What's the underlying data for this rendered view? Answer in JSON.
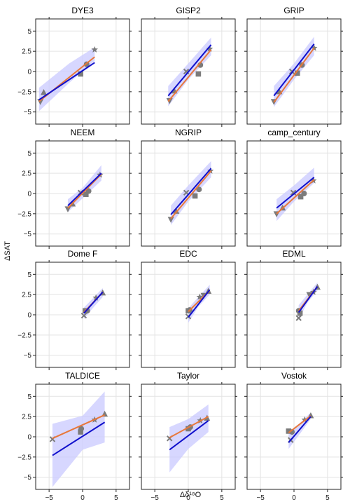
{
  "figure": {
    "ylabel": "ΔSAT",
    "xlabel": "Δδ¹⁸O",
    "x_ticks": [
      -5,
      0,
      5
    ],
    "y_ticks": [
      -5,
      -2.5,
      0,
      2.5,
      5
    ],
    "x_tick_labels": [
      "−5",
      "0",
      "5"
    ],
    "y_tick_labels": [
      "−5",
      "−2.5",
      "0",
      "2.5",
      "5"
    ],
    "colors": {
      "orange": "#e8773a",
      "blue": "#1010cc",
      "band": "#c9c9ff",
      "marker": "#7b7b7b",
      "grid": "#e3e3e3"
    }
  },
  "chart_data": [
    {
      "type": "scatter",
      "title": "DYE3",
      "xlim": [
        -7,
        7
      ],
      "ylim": [
        -6.5,
        6.5
      ],
      "points": [
        {
          "m": "tri_down",
          "x": -6.3,
          "y": -3.7
        },
        {
          "m": "tri_up",
          "x": -5.8,
          "y": -2.6
        },
        {
          "m": "square",
          "x": -0.3,
          "y": -0.3
        },
        {
          "m": "circle",
          "x": 0.6,
          "y": 0.9
        },
        {
          "m": "star",
          "x": 1.8,
          "y": 2.7
        }
      ],
      "fit_orange": [
        [
          -6.5,
          -3.7
        ],
        [
          1.8,
          1.8
        ]
      ],
      "fit_blue": [
        [
          -6.5,
          -3.5
        ],
        [
          1.8,
          1.1
        ]
      ],
      "band": [
        [
          -6.5,
          -4.9
        ],
        [
          -2,
          -1.4
        ],
        [
          1.8,
          1.3
        ],
        [
          1.8,
          3.0
        ],
        [
          -2,
          1.0
        ],
        [
          -6.5,
          -2.0
        ]
      ]
    },
    {
      "type": "scatter",
      "title": "GISP2",
      "xlim": [
        -7,
        7
      ],
      "ylim": [
        -6.5,
        6.5
      ],
      "points": [
        {
          "m": "tri_down",
          "x": -2.8,
          "y": -3.6
        },
        {
          "m": "tri_up",
          "x": -2.1,
          "y": -2.4
        },
        {
          "m": "x",
          "x": -0.3,
          "y": 0.0
        },
        {
          "m": "square",
          "x": 1.5,
          "y": -0.3
        },
        {
          "m": "circle",
          "x": 1.8,
          "y": 0.8
        },
        {
          "m": "star",
          "x": 3.2,
          "y": 2.8
        }
      ],
      "fit_orange": [
        [
          -3.0,
          -3.7
        ],
        [
          3.4,
          2.7
        ]
      ],
      "fit_blue": [
        [
          -3.0,
          -3.0
        ],
        [
          3.4,
          3.3
        ]
      ],
      "band": [
        [
          -3.0,
          -4.3
        ],
        [
          0,
          -1.0
        ],
        [
          3.4,
          2.0
        ],
        [
          3.4,
          4.2
        ],
        [
          0,
          1.0
        ],
        [
          -3.0,
          -1.8
        ]
      ]
    },
    {
      "type": "scatter",
      "title": "GRIP",
      "xlim": [
        -7,
        7
      ],
      "ylim": [
        -6.5,
        6.5
      ],
      "points": [
        {
          "m": "tri_down",
          "x": -3.0,
          "y": -3.7
        },
        {
          "m": "tri_up",
          "x": -2.2,
          "y": -2.5
        },
        {
          "m": "x",
          "x": -0.3,
          "y": 0.0
        },
        {
          "m": "square",
          "x": 0.5,
          "y": -0.2
        },
        {
          "m": "circle",
          "x": 1.2,
          "y": 0.8
        },
        {
          "m": "star",
          "x": 3.0,
          "y": 2.9
        }
      ],
      "fit_orange": [
        [
          -3.0,
          -3.8
        ],
        [
          3.0,
          2.9
        ]
      ],
      "fit_blue": [
        [
          -3.0,
          -3.0
        ],
        [
          3.0,
          3.4
        ]
      ],
      "band": [
        [
          -3.0,
          -4.4
        ],
        [
          0,
          -1.0
        ],
        [
          3.0,
          2.0
        ],
        [
          3.0,
          4.3
        ],
        [
          0,
          1.0
        ],
        [
          -3.0,
          -1.8
        ]
      ]
    },
    {
      "type": "scatter",
      "title": "NEEM",
      "xlim": [
        -7,
        7
      ],
      "ylim": [
        -6.5,
        6.5
      ],
      "points": [
        {
          "m": "tri_down",
          "x": -2.2,
          "y": -1.9
        },
        {
          "m": "tri_up",
          "x": -1.5,
          "y": -1.3
        },
        {
          "m": "x",
          "x": -0.3,
          "y": 0.1
        },
        {
          "m": "square",
          "x": 0.5,
          "y": -0.1
        },
        {
          "m": "circle",
          "x": 0.9,
          "y": 0.3
        },
        {
          "m": "star",
          "x": 2.6,
          "y": 2.3
        }
      ],
      "fit_orange": [
        [
          -2.2,
          -1.8
        ],
        [
          2.8,
          2.4
        ]
      ],
      "fit_blue": [
        [
          -2.2,
          -1.5
        ],
        [
          2.8,
          2.5
        ]
      ],
      "band": [
        [
          -2.2,
          -2.3
        ],
        [
          0,
          -0.6
        ],
        [
          2.8,
          1.6
        ],
        [
          2.8,
          3.5
        ],
        [
          0,
          0.7
        ],
        [
          -2.2,
          -0.7
        ]
      ]
    },
    {
      "type": "scatter",
      "title": "NGRIP",
      "xlim": [
        -7,
        7
      ],
      "ylim": [
        -6.5,
        6.5
      ],
      "points": [
        {
          "m": "tri_down",
          "x": -2.6,
          "y": -3.2
        },
        {
          "m": "tri_up",
          "x": -1.8,
          "y": -2.2
        },
        {
          "m": "x",
          "x": -0.3,
          "y": 0.1
        },
        {
          "m": "square",
          "x": 1.0,
          "y": -0.3
        },
        {
          "m": "circle",
          "x": 1.6,
          "y": 0.5
        },
        {
          "m": "star",
          "x": 3.3,
          "y": 2.8
        }
      ],
      "fit_orange": [
        [
          -2.6,
          -3.1
        ],
        [
          3.4,
          2.8
        ]
      ],
      "fit_blue": [
        [
          -2.6,
          -2.6
        ],
        [
          3.4,
          3.1
        ]
      ],
      "band": [
        [
          -2.6,
          -3.9
        ],
        [
          0,
          -1.0
        ],
        [
          3.4,
          2.0
        ],
        [
          3.4,
          4.0
        ],
        [
          0,
          1.0
        ],
        [
          -2.6,
          -1.5
        ]
      ]
    },
    {
      "type": "scatter",
      "title": "camp_century",
      "xlim": [
        -7,
        7
      ],
      "ylim": [
        -6.5,
        6.5
      ],
      "points": [
        {
          "m": "tri_down",
          "x": -2.6,
          "y": -2.5
        },
        {
          "m": "tri_up",
          "x": -1.7,
          "y": -1.8
        },
        {
          "m": "x",
          "x": -0.1,
          "y": 0.1
        },
        {
          "m": "square",
          "x": 1.0,
          "y": -0.4
        },
        {
          "m": "circle",
          "x": 1.5,
          "y": 0.0
        },
        {
          "m": "star",
          "x": 2.9,
          "y": 1.6
        }
      ],
      "fit_orange": [
        [
          -2.6,
          -2.5
        ],
        [
          3.0,
          1.7
        ]
      ],
      "fit_blue": [
        [
          -2.6,
          -1.8
        ],
        [
          3.0,
          2.0
        ]
      ],
      "band": [
        [
          -2.6,
          -3.4
        ],
        [
          0,
          -1.0
        ],
        [
          3.0,
          1.3
        ],
        [
          3.0,
          3.2
        ],
        [
          0,
          1.0
        ],
        [
          -2.6,
          -0.7
        ]
      ]
    },
    {
      "type": "scatter",
      "title": "Dome F",
      "xlim": [
        -7,
        7
      ],
      "ylim": [
        -6.5,
        6.5
      ],
      "points": [
        {
          "m": "x",
          "x": 0.2,
          "y": -0.1
        },
        {
          "m": "square",
          "x": 0.4,
          "y": 0.5
        },
        {
          "m": "circle",
          "x": 0.7,
          "y": 0.5
        },
        {
          "m": "star",
          "x": 2.0,
          "y": 2.1
        },
        {
          "m": "tri_up",
          "x": 3.0,
          "y": 2.7
        }
      ],
      "fit_orange": [
        [
          0.2,
          0.3
        ],
        [
          3.0,
          2.8
        ]
      ],
      "fit_blue": [
        [
          0.2,
          0.2
        ],
        [
          3.0,
          2.8
        ]
      ],
      "band": [
        [
          0.2,
          -0.5
        ],
        [
          1.5,
          0.8
        ],
        [
          3.0,
          2.2
        ],
        [
          3.0,
          3.3
        ],
        [
          1.5,
          2.0
        ],
        [
          0.2,
          0.9
        ]
      ]
    },
    {
      "type": "scatter",
      "title": "EDC",
      "xlim": [
        -7,
        7
      ],
      "ylim": [
        -6.5,
        6.5
      ],
      "points": [
        {
          "m": "x",
          "x": 0.0,
          "y": -0.2
        },
        {
          "m": "circle",
          "x": 0.2,
          "y": 0.6
        },
        {
          "m": "square",
          "x": 0.0,
          "y": 0.5
        },
        {
          "m": "star",
          "x": 1.7,
          "y": 2.2
        },
        {
          "m": "tri_down",
          "x": 2.3,
          "y": 2.4
        },
        {
          "m": "tri_up",
          "x": 3.0,
          "y": 2.9
        }
      ],
      "fit_orange": [
        [
          0.0,
          0.4
        ],
        [
          3.2,
          3.0
        ]
      ],
      "fit_blue": [
        [
          0.0,
          -0.3
        ],
        [
          3.2,
          3.1
        ]
      ],
      "band": [
        [
          0.0,
          -1.0
        ],
        [
          1.5,
          1.0
        ],
        [
          3.2,
          2.5
        ],
        [
          3.2,
          3.7
        ],
        [
          1.5,
          2.2
        ],
        [
          0.0,
          0.8
        ]
      ]
    },
    {
      "type": "scatter",
      "title": "EDML",
      "xlim": [
        -7,
        7
      ],
      "ylim": [
        -6.5,
        6.5
      ],
      "points": [
        {
          "m": "x",
          "x": 0.7,
          "y": -0.4
        },
        {
          "m": "circle",
          "x": 0.7,
          "y": 0.5
        },
        {
          "m": "square",
          "x": 0.9,
          "y": 0.2
        },
        {
          "m": "tri_down",
          "x": 2.3,
          "y": 2.5
        },
        {
          "m": "star",
          "x": 2.9,
          "y": 2.8
        },
        {
          "m": "tri_up",
          "x": 3.5,
          "y": 3.4
        }
      ],
      "fit_orange": [
        [
          0.7,
          0.5
        ],
        [
          3.5,
          3.5
        ]
      ],
      "fit_blue": [
        [
          0.7,
          0.3
        ],
        [
          3.5,
          3.5
        ]
      ],
      "band": [
        [
          0.7,
          -0.6
        ],
        [
          2.0,
          1.5
        ],
        [
          3.5,
          3.0
        ],
        [
          3.5,
          4.0
        ],
        [
          2.0,
          2.5
        ],
        [
          0.7,
          1.2
        ]
      ]
    },
    {
      "type": "scatter",
      "title": "TALDICE",
      "xlim": [
        -7,
        7
      ],
      "ylim": [
        -6.5,
        6.5
      ],
      "points": [
        {
          "m": "x",
          "x": -4.5,
          "y": -0.3
        },
        {
          "m": "square",
          "x": -0.3,
          "y": 0.6
        },
        {
          "m": "circle",
          "x": -0.2,
          "y": 1.0
        },
        {
          "m": "star",
          "x": 1.8,
          "y": 2.1
        },
        {
          "m": "tri_up",
          "x": 3.3,
          "y": 2.8
        }
      ],
      "fit_orange": [
        [
          -4.5,
          -0.2
        ],
        [
          3.3,
          2.7
        ]
      ],
      "fit_blue": [
        [
          -4.5,
          -2.3
        ],
        [
          3.3,
          1.8
        ]
      ],
      "band": [
        [
          -4.5,
          -6.2
        ],
        [
          0,
          -1.6
        ],
        [
          3.3,
          -0.7
        ],
        [
          3.3,
          5.6
        ],
        [
          0,
          2.6
        ],
        [
          -4.5,
          1.6
        ]
      ]
    },
    {
      "type": "scatter",
      "title": "Taylor",
      "xlim": [
        -7,
        7
      ],
      "ylim": [
        -6.5,
        6.5
      ],
      "points": [
        {
          "m": "x",
          "x": -2.8,
          "y": -0.2
        },
        {
          "m": "square",
          "x": 0.0,
          "y": 1.0
        },
        {
          "m": "circle",
          "x": 0.3,
          "y": 1.2
        },
        {
          "m": "star",
          "x": 1.8,
          "y": 2.0
        },
        {
          "m": "tri_up",
          "x": 2.8,
          "y": 2.3
        }
      ],
      "fit_orange": [
        [
          -2.8,
          -0.1
        ],
        [
          3.0,
          2.5
        ]
      ],
      "fit_blue": [
        [
          -2.8,
          -1.6
        ],
        [
          3.0,
          2.0
        ]
      ],
      "band": [
        [
          -2.8,
          -4.4
        ],
        [
          0,
          -1.5
        ],
        [
          3.0,
          0.6
        ],
        [
          3.0,
          4.0
        ],
        [
          0,
          2.2
        ],
        [
          -2.8,
          1.2
        ]
      ]
    },
    {
      "type": "scatter",
      "title": "Vostok",
      "xlim": [
        -7,
        7
      ],
      "ylim": [
        -6.5,
        6.5
      ],
      "points": [
        {
          "m": "x",
          "x": -0.5,
          "y": -0.4
        },
        {
          "m": "square",
          "x": -0.8,
          "y": 0.7
        },
        {
          "m": "circle",
          "x": -0.3,
          "y": 0.6
        },
        {
          "m": "star",
          "x": 1.6,
          "y": 2.1
        },
        {
          "m": "tri_up",
          "x": 2.5,
          "y": 2.6
        }
      ],
      "fit_orange": [
        [
          -0.8,
          0.5
        ],
        [
          2.5,
          2.6
        ]
      ],
      "fit_blue": [
        [
          -0.8,
          -0.7
        ],
        [
          2.5,
          2.5
        ]
      ],
      "band": [
        [
          -0.8,
          -1.5
        ],
        [
          1.0,
          0.5
        ],
        [
          2.5,
          2.2
        ],
        [
          2.5,
          3.0
        ],
        [
          1.0,
          1.8
        ],
        [
          -0.8,
          0.5
        ]
      ]
    }
  ]
}
